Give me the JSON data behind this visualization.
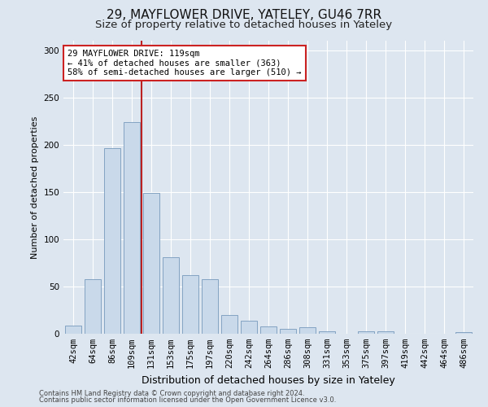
{
  "title": "29, MAYFLOWER DRIVE, YATELEY, GU46 7RR",
  "subtitle": "Size of property relative to detached houses in Yateley",
  "xlabel": "Distribution of detached houses by size in Yateley",
  "ylabel": "Number of detached properties",
  "categories": [
    "42sqm",
    "64sqm",
    "86sqm",
    "109sqm",
    "131sqm",
    "153sqm",
    "175sqm",
    "197sqm",
    "220sqm",
    "242sqm",
    "264sqm",
    "286sqm",
    "308sqm",
    "331sqm",
    "353sqm",
    "375sqm",
    "397sqm",
    "419sqm",
    "442sqm",
    "464sqm",
    "486sqm"
  ],
  "values": [
    9,
    58,
    196,
    224,
    149,
    81,
    62,
    58,
    20,
    14,
    8,
    5,
    7,
    3,
    0,
    3,
    3,
    0,
    0,
    0,
    2
  ],
  "bar_color": "#c9d9ea",
  "bar_edge_color": "#7799bb",
  "vline_color": "#bb2222",
  "annotation_text": "29 MAYFLOWER DRIVE: 119sqm\n← 41% of detached houses are smaller (363)\n58% of semi-detached houses are larger (510) →",
  "annotation_box_color": "#ffffff",
  "annotation_box_edge": "#cc2222",
  "bg_color": "#dde6f0",
  "plot_bg_color": "#dde6f0",
  "ylim": [
    0,
    310
  ],
  "yticks": [
    0,
    50,
    100,
    150,
    200,
    250,
    300
  ],
  "footer1": "Contains HM Land Registry data © Crown copyright and database right 2024.",
  "footer2": "Contains public sector information licensed under the Open Government Licence v3.0.",
  "grid_color": "#ffffff",
  "title_fontsize": 11,
  "subtitle_fontsize": 9.5,
  "xlabel_fontsize": 9,
  "ylabel_fontsize": 8,
  "tick_fontsize": 7.5,
  "footer_fontsize": 6,
  "bar_width": 0.85,
  "vline_index": 3.5
}
